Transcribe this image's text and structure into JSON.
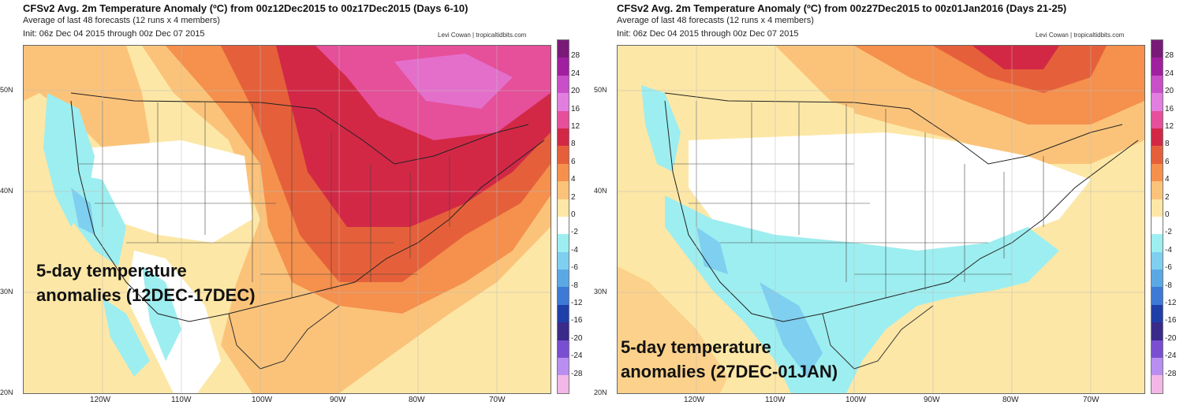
{
  "panels": [
    {
      "title": "CFSv2 Avg. 2m Temperature Anomaly (ºC) from 00z12Dec2015 to 00z17Dec2015 (Days 6-10)",
      "subtitle": "Average of last 48 forecasts (12 runs x 4 members)",
      "init": "Init: 06z Dec 04 2015 through 00z Dec 07 2015",
      "credit": "Levi Cowan | tropicaltidbits.com",
      "overlay_line1": "5-day temperature",
      "overlay_line2": "anomalies (12DEC-17DEC)"
    },
    {
      "title": "CFSv2 Avg. 2m Temperature Anomaly (ºC) from 00z27Dec2015 to 00z01Jan2016 (Days 21-25)",
      "subtitle": "Average of last 48 forecasts (12 runs x 4 members)",
      "init": "Init: 06z Dec 04 2015 through 00z Dec 07 2015",
      "credit": "Levi Cowan | tropicaltidbits.com",
      "overlay_line1": "5-day temperature",
      "overlay_line2": "anomalies (27DEC-01JAN)"
    }
  ],
  "lat_labels": [
    "50N",
    "40N",
    "30N",
    "20N"
  ],
  "lon_labels": [
    "120W",
    "110W",
    "100W",
    "90W",
    "80W",
    "70W"
  ],
  "colorbar": {
    "labels": [
      "28",
      "24",
      "20",
      "16",
      "12",
      "8",
      "6",
      "4",
      "2",
      "0",
      "-2",
      "-4",
      "-6",
      "-8",
      "-12",
      "-16",
      "-20",
      "-24",
      "-28"
    ],
    "colors": [
      "#7a1a78",
      "#a0209f",
      "#c84fc8",
      "#e27ee0",
      "#e64f9a",
      "#d22846",
      "#e5603a",
      "#f5904d",
      "#fbc37a",
      "#fde7a6",
      "#ffffff",
      "#9deef0",
      "#7fcff0",
      "#5aa9e4",
      "#3d7ad6",
      "#1f3fa8",
      "#3a2a8a",
      "#7a4ed0",
      "#b88ef0",
      "#f2b7e6"
    ]
  }
}
